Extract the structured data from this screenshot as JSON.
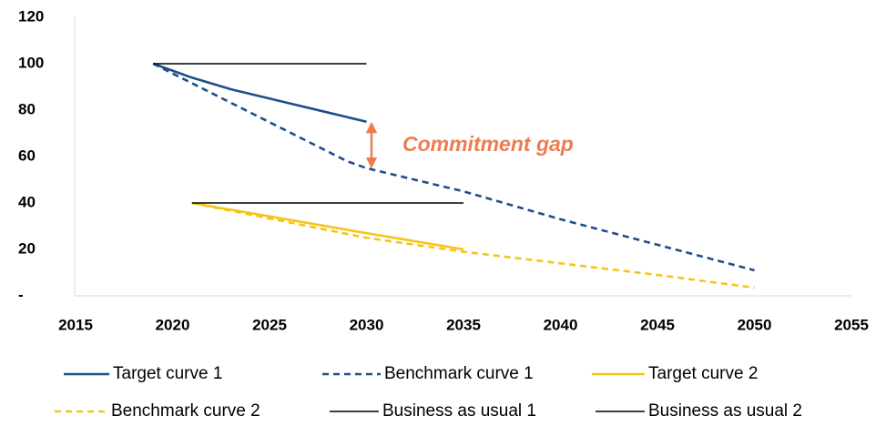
{
  "chart_data": {
    "type": "line",
    "annotation": "Commitment gap",
    "xlim": [
      2015,
      2055
    ],
    "xticks": [
      2015,
      2020,
      2025,
      2030,
      2035,
      2040,
      2045,
      2050,
      2055
    ],
    "ylim": [
      0,
      120
    ],
    "yticks": [
      {
        "value": 0,
        "label": "-"
      },
      20,
      40,
      60,
      80,
      100,
      120
    ],
    "grid": false,
    "series": [
      {
        "name": "Target curve 1",
        "color": "#1f4e8c",
        "dash": "solid",
        "x": [
          2019,
          2020,
          2021,
          2022,
          2023,
          2024,
          2025,
          2026,
          2027,
          2028,
          2029,
          2030
        ],
        "values": [
          100,
          97,
          94,
          91.5,
          89,
          87,
          85,
          83,
          81,
          79,
          77,
          75
        ]
      },
      {
        "name": "Benchmark curve 1",
        "color": "#1f4e8c",
        "dash": "dashed",
        "x": [
          2019,
          2029,
          2030,
          2035,
          2040,
          2045,
          2050
        ],
        "values": [
          100,
          58,
          55,
          45,
          33,
          22,
          11
        ]
      },
      {
        "name": "Target curve 2",
        "color": "#f5c518",
        "dash": "solid",
        "x": [
          2021,
          2030,
          2035
        ],
        "values": [
          40,
          27,
          20
        ]
      },
      {
        "name": "Benchmark curve 2",
        "color": "#f5c518",
        "dash": "dashed",
        "x": [
          2021,
          2030,
          2035,
          2040,
          2045,
          2050
        ],
        "values": [
          40,
          25,
          19,
          14,
          9,
          3.5
        ]
      },
      {
        "name": "Business as usual 1",
        "color": "#000000",
        "dash": "solid",
        "x": [
          2019,
          2030
        ],
        "values": [
          100,
          100
        ]
      },
      {
        "name": "Business as usual 2",
        "color": "#000000",
        "dash": "solid",
        "x": [
          2021,
          2035
        ],
        "values": [
          40,
          40
        ]
      }
    ]
  }
}
